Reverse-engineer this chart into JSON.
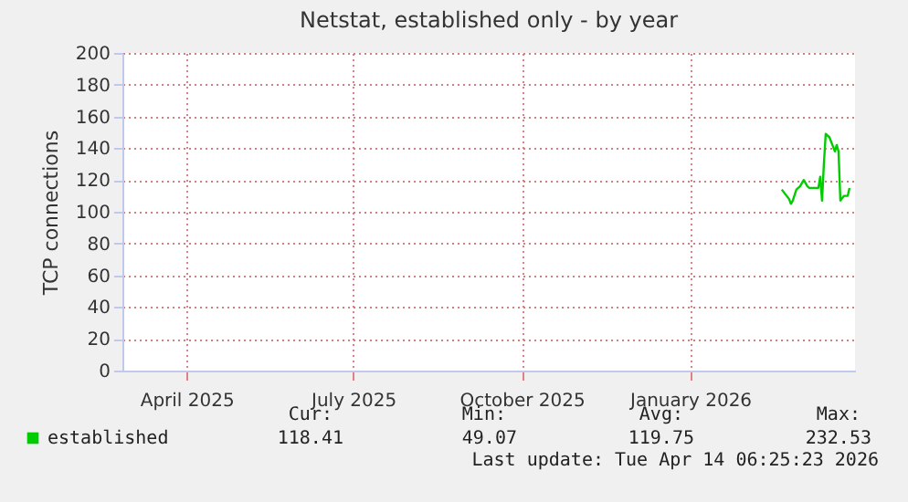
{
  "chart_data": {
    "type": "line",
    "title": "Netstat, established only - by year",
    "ylabel": "TCP connections",
    "x": [
      "2026-03-06",
      "2026-03-08",
      "2026-03-10",
      "2026-03-11",
      "2026-03-12",
      "2026-03-14",
      "2026-03-16",
      "2026-03-18",
      "2026-03-20",
      "2026-03-21",
      "2026-03-24",
      "2026-03-26",
      "2026-03-27",
      "2026-03-28",
      "2026-03-29",
      "2026-03-30",
      "2026-04-01",
      "2026-04-03",
      "2026-04-04",
      "2026-04-05",
      "2026-04-06",
      "2026-04-07",
      "2026-04-09",
      "2026-04-11",
      "2026-04-12"
    ],
    "series": [
      {
        "name": "established",
        "color": "#00cc00",
        "values": [
          114,
          111,
          108,
          105,
          107,
          114,
          116,
          120,
          116,
          115,
          115,
          115,
          122,
          107,
          130,
          149,
          147,
          141,
          138,
          142,
          138,
          107,
          110,
          110,
          115
        ]
      }
    ],
    "xlim": [
      "2025-03-11",
      "2026-04-15"
    ],
    "xticks": [
      {
        "value": "2025-04-15",
        "label": "April 2025"
      },
      {
        "value": "2025-07-15",
        "label": "July 2025"
      },
      {
        "value": "2025-10-15",
        "label": "October 2025"
      },
      {
        "value": "2026-01-15",
        "label": "January 2026"
      }
    ],
    "ylim": [
      0,
      200
    ],
    "yticks": [
      0,
      20,
      40,
      60,
      80,
      100,
      120,
      140,
      160,
      180,
      200
    ],
    "grid": true,
    "legend": "bottom",
    "marker": "none",
    "line_style": "solid",
    "annotations": [
      "Cur:",
      "118.41",
      "Min:",
      "49.07",
      "Avg:",
      "119.75",
      "Max:",
      "232.53",
      "Last update: Tue Apr 14 06:25:23 2026"
    ]
  }
}
